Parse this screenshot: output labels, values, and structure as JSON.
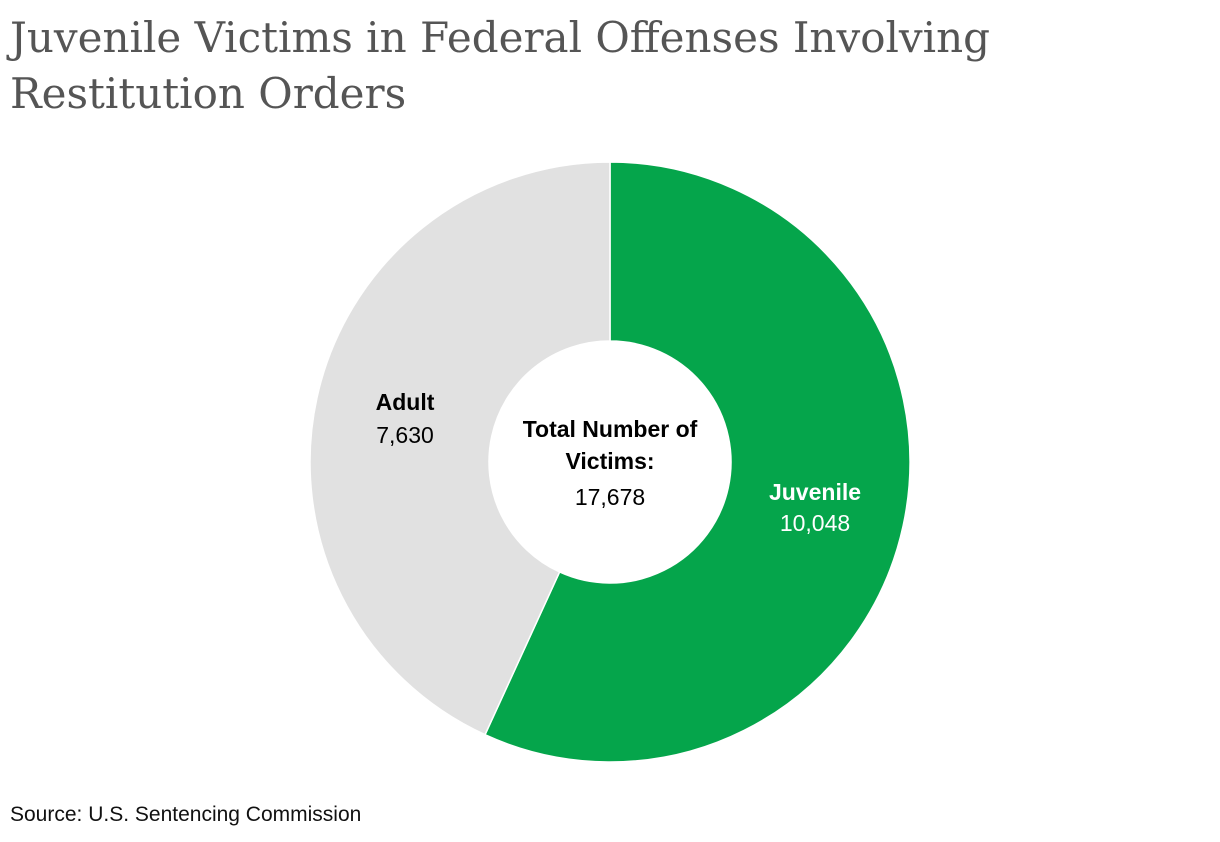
{
  "title": "Juvenile Victims in Federal Offenses Involving Restitution Orders",
  "source": "Source: U.S. Sentencing Commission",
  "colors": {
    "juvenile": "#05a54b",
    "adult": "#e1e1e1",
    "title": "#555555"
  },
  "chart_data": {
    "type": "pie",
    "variant": "donut",
    "categories": [
      "Juvenile",
      "Adult"
    ],
    "values": [
      10048,
      7630
    ],
    "value_labels": [
      "10,048",
      "7,630"
    ],
    "center_label": {
      "title_line1": "Total Number of",
      "title_line2": "Victims:",
      "value": "17,678"
    }
  }
}
